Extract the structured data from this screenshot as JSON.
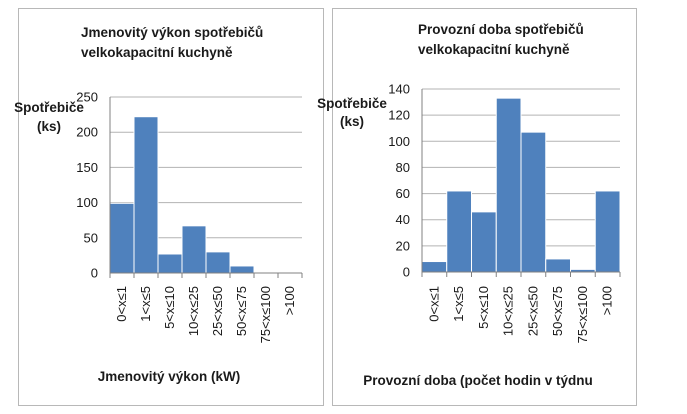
{
  "chart_data": [
    {
      "type": "bar",
      "title": [
        "Jmenovitý výkon spotřebičů",
        "velkokapacitní kuchyně"
      ],
      "ylabel": [
        "Spotřebiče",
        "(ks)"
      ],
      "xlabel": "Jmenovitý výkon (kW)",
      "categories": [
        "0<x≤1",
        "1<x≤5",
        "5<x≤10",
        "10<x≤25",
        "25<x≤50",
        "50<x≤75",
        "75<x≤100",
        ">100"
      ],
      "values": [
        99,
        222,
        27,
        67,
        30,
        10,
        1,
        0
      ],
      "ylim": [
        0,
        250
      ],
      "yticks": [
        0,
        50,
        100,
        150,
        200,
        250
      ],
      "grid": true,
      "bar_color": "#4f81bd"
    },
    {
      "type": "bar",
      "title": [
        "Provozní doba spotřebičů",
        "velkokapacitní kuchyně"
      ],
      "ylabel": [
        "Spotřebiče",
        "(ks)"
      ],
      "xlabel": "Provozní doba (počet hodin v týdnu",
      "categories": [
        "0<x≤1",
        "1<x≤5",
        "5<x≤10",
        "10<x≤25",
        "25<x≤50",
        "50<x≤75",
        "75<x≤100",
        ">100"
      ],
      "values": [
        8,
        62,
        46,
        133,
        107,
        10,
        2,
        62
      ],
      "ylim": [
        0,
        140
      ],
      "yticks": [
        0,
        20,
        40,
        60,
        80,
        100,
        120,
        140
      ],
      "grid": true,
      "bar_color": "#4f81bd"
    }
  ]
}
